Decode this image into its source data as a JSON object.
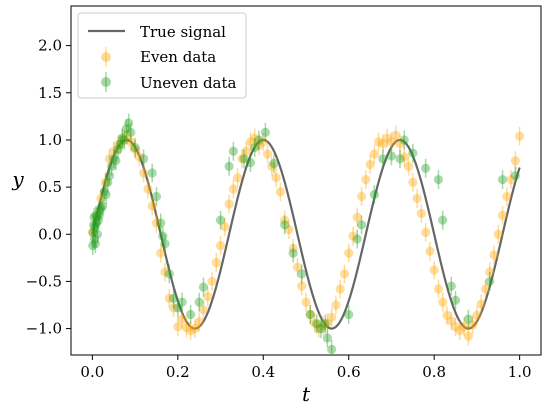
{
  "chart_data": {
    "type": "scatter",
    "title": "",
    "xlabel": "t",
    "ylabel": "y",
    "xlim": [
      -0.05,
      1.05
    ],
    "ylim": [
      -1.28,
      2.42
    ],
    "xticks": [
      0.0,
      0.2,
      0.4,
      0.6,
      0.8,
      1.0
    ],
    "xtick_labels": [
      "0.0",
      "0.2",
      "0.4",
      "0.6",
      "0.8",
      "1.0"
    ],
    "yticks": [
      -1.0,
      -0.5,
      0.0,
      0.5,
      1.0,
      1.5,
      2.0
    ],
    "ytick_labels": [
      "−1.0",
      "−0.5",
      "0.0",
      "0.5",
      "1.0",
      "1.5",
      "2.0"
    ],
    "grid": false,
    "legend_position": "top-left",
    "legend": [
      "True signal",
      "Even data",
      "Uneven data"
    ],
    "true_signal": {
      "name": "True signal",
      "color": "#666666",
      "function": "sin(2*pi*t/0.32)",
      "t_range": [
        0,
        1
      ]
    },
    "series": [
      {
        "name": "Even data",
        "color": "#ffa500",
        "x": [
          0.0,
          0.01,
          0.02,
          0.03,
          0.04,
          0.05,
          0.06,
          0.07,
          0.08,
          0.09,
          0.1,
          0.11,
          0.12,
          0.13,
          0.14,
          0.15,
          0.16,
          0.17,
          0.18,
          0.19,
          0.2,
          0.21,
          0.22,
          0.23,
          0.24,
          0.25,
          0.26,
          0.27,
          0.28,
          0.29,
          0.3,
          0.31,
          0.32,
          0.33,
          0.34,
          0.35,
          0.36,
          0.37,
          0.38,
          0.39,
          0.4,
          0.41,
          0.42,
          0.43,
          0.44,
          0.45,
          0.46,
          0.47,
          0.48,
          0.49,
          0.5,
          0.51,
          0.52,
          0.53,
          0.54,
          0.55,
          0.56,
          0.57,
          0.58,
          0.59,
          0.6,
          0.61,
          0.62,
          0.63,
          0.64,
          0.65,
          0.66,
          0.67,
          0.68,
          0.69,
          0.7,
          0.71,
          0.72,
          0.73,
          0.74,
          0.75,
          0.76,
          0.77,
          0.78,
          0.79,
          0.8,
          0.81,
          0.82,
          0.83,
          0.84,
          0.85,
          0.86,
          0.87,
          0.88,
          0.89,
          0.9,
          0.91,
          0.92,
          0.93,
          0.94,
          0.95,
          0.96,
          0.97,
          0.98,
          0.99,
          1.0
        ],
        "y": [
          0.02,
          0.18,
          0.38,
          0.55,
          0.8,
          0.88,
          0.95,
          1.0,
          1.05,
          0.98,
          0.9,
          0.82,
          0.65,
          0.48,
          0.3,
          0.12,
          -0.2,
          -0.4,
          -0.68,
          -0.78,
          -0.98,
          -0.9,
          -0.99,
          -1.02,
          -1.0,
          -0.93,
          -0.8,
          -0.66,
          -0.5,
          -0.3,
          -0.12,
          0.08,
          0.32,
          0.48,
          0.6,
          0.8,
          0.88,
          0.98,
          1.02,
          0.94,
          0.98,
          0.85,
          0.72,
          0.6,
          0.45,
          0.15,
          0.05,
          -0.15,
          -0.35,
          -0.55,
          -0.72,
          -0.85,
          -0.94,
          -1.0,
          -0.97,
          -0.94,
          -0.88,
          -0.75,
          -0.58,
          -0.42,
          -0.2,
          -0.02,
          0.18,
          0.4,
          0.58,
          0.74,
          0.85,
          0.98,
          0.96,
          1.02,
          0.98,
          1.05,
          0.96,
          0.82,
          0.72,
          0.55,
          0.38,
          0.22,
          0.02,
          -0.18,
          -0.38,
          -0.58,
          -0.72,
          -0.86,
          -0.92,
          -0.98,
          -1.02,
          -0.98,
          -1.08,
          -0.96,
          -0.86,
          -0.74,
          -0.58,
          -0.4,
          -0.22,
          0.0,
          0.2,
          0.4,
          0.58,
          0.78,
          1.04
        ]
      },
      {
        "name": "Uneven data",
        "color": "#1f9d1f",
        "x": [
          0.001,
          0.002,
          0.003,
          0.004,
          0.005,
          0.006,
          0.007,
          0.008,
          0.01,
          0.012,
          0.014,
          0.016,
          0.018,
          0.02,
          0.024,
          0.028,
          0.032,
          0.036,
          0.04,
          0.045,
          0.05,
          0.055,
          0.06,
          0.065,
          0.07,
          0.075,
          0.08,
          0.085,
          0.09,
          0.1,
          0.12,
          0.14,
          0.15,
          0.16,
          0.165,
          0.17,
          0.18,
          0.19,
          0.2,
          0.21,
          0.23,
          0.25,
          0.26,
          0.3,
          0.32,
          0.33,
          0.355,
          0.37,
          0.38,
          0.39,
          0.405,
          0.425,
          0.45,
          0.47,
          0.49,
          0.51,
          0.525,
          0.535,
          0.545,
          0.55,
          0.56,
          0.6,
          0.62,
          0.63,
          0.66,
          0.68,
          0.7,
          0.72,
          0.73,
          0.75,
          0.78,
          0.81,
          0.82,
          0.84,
          0.85,
          0.88,
          0.93,
          0.96,
          0.99
        ],
        "y": [
          -0.12,
          0.02,
          0.1,
          0.18,
          -0.05,
          0.08,
          -0.1,
          0.2,
          0.12,
          0.0,
          0.15,
          0.2,
          0.25,
          0.28,
          0.3,
          0.45,
          0.42,
          0.55,
          0.62,
          0.72,
          0.8,
          0.78,
          0.9,
          0.95,
          1.02,
          1.0,
          1.12,
          1.18,
          1.08,
          0.92,
          0.8,
          0.65,
          0.4,
          0.12,
          -0.02,
          -0.1,
          -0.42,
          -0.68,
          -0.78,
          -0.72,
          -0.85,
          -0.72,
          -0.56,
          0.15,
          0.72,
          0.88,
          0.8,
          0.76,
          0.92,
          1.0,
          1.08,
          0.75,
          0.1,
          -0.2,
          -0.42,
          -0.85,
          -0.95,
          -1.0,
          -0.95,
          -1.1,
          -1.22,
          -0.85,
          -0.05,
          0.1,
          0.42,
          0.8,
          0.83,
          0.8,
          1.0,
          0.86,
          0.7,
          0.58,
          0.15,
          -0.55,
          -0.7,
          -0.9,
          -0.5,
          0.58,
          0.62
        ]
      }
    ]
  }
}
